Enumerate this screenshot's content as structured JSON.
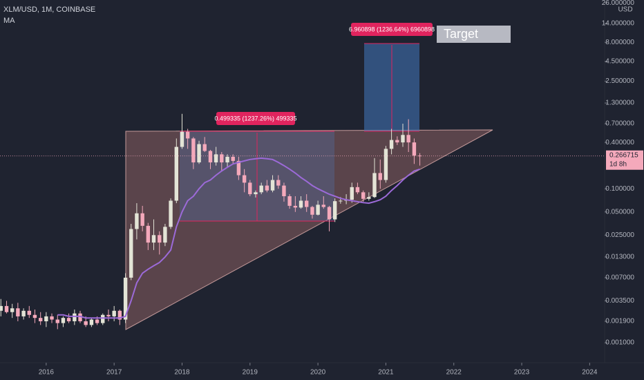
{
  "chart_data": {
    "type": "candlestick",
    "title": "XLM/USD, 1M, COINBASE",
    "currency": "USD",
    "log_scale": true,
    "up_color": "#e3e4d6",
    "down_color": "#f4a9bb",
    "xlim": [
      2015.32,
      2024.22
    ],
    "xticks": [
      2016,
      2017,
      2018,
      2019,
      2020,
      2021,
      2022,
      2023,
      2024
    ],
    "ylim": [
      0.00055,
      28.3
    ],
    "yticks": [
      {
        "value": 26,
        "label": "26.000000"
      },
      {
        "value": 14,
        "label": "14.000000"
      },
      {
        "value": 8,
        "label": "8.000000"
      },
      {
        "value": 4.5,
        "label": "4.500000"
      },
      {
        "value": 2.5,
        "label": "2.500000"
      },
      {
        "value": 1.3,
        "label": "1.300000"
      },
      {
        "value": 0.7,
        "label": "0.700000"
      },
      {
        "value": 0.4,
        "label": "0.400000"
      },
      {
        "value": 0.1,
        "label": "0.100000"
      },
      {
        "value": 0.05,
        "label": "0.050000"
      },
      {
        "value": 0.025,
        "label": "0.025000"
      },
      {
        "value": 0.013,
        "label": "0.013000"
      },
      {
        "value": 0.007,
        "label": "0.007000"
      },
      {
        "value": 0.0035,
        "label": "0.003500"
      },
      {
        "value": 0.0019,
        "label": "0.001900"
      },
      {
        "value": 0.001,
        "label": "0.001000"
      }
    ],
    "last_price": 0.266715,
    "countdown": "1d 8h",
    "x": [
      2015.333,
      2015.417,
      2015.5,
      2015.583,
      2015.667,
      2015.75,
      2015.833,
      2015.917,
      2016,
      2016.083,
      2016.167,
      2016.25,
      2016.333,
      2016.417,
      2016.5,
      2016.583,
      2016.667,
      2016.75,
      2016.833,
      2016.917,
      2017,
      2017.083,
      2017.167,
      2017.25,
      2017.333,
      2017.417,
      2017.5,
      2017.583,
      2017.667,
      2017.75,
      2017.833,
      2017.917,
      2018,
      2018.083,
      2018.167,
      2018.25,
      2018.333,
      2018.417,
      2018.5,
      2018.583,
      2018.667,
      2018.75,
      2018.833,
      2018.917,
      2019,
      2019.083,
      2019.167,
      2019.25,
      2019.333,
      2019.417,
      2019.5,
      2019.583,
      2019.667,
      2019.75,
      2019.833,
      2019.917,
      2020,
      2020.083,
      2020.167,
      2020.25,
      2020.333,
      2020.417,
      2020.5,
      2020.583,
      2020.667,
      2020.75,
      2020.833,
      2020.917,
      2021,
      2021.083,
      2021.167,
      2021.25,
      2021.333,
      2021.417,
      2021.5
    ],
    "candles": [
      [
        0.0026,
        0.0037,
        0.0022,
        0.003
      ],
      [
        0.003,
        0.0035,
        0.0024,
        0.0025
      ],
      [
        0.0025,
        0.0032,
        0.0021,
        0.0028
      ],
      [
        0.0028,
        0.0033,
        0.0019,
        0.0022
      ],
      [
        0.0022,
        0.0028,
        0.002,
        0.0026
      ],
      [
        0.0026,
        0.003,
        0.0021,
        0.0023
      ],
      [
        0.0023,
        0.0027,
        0.0018,
        0.0021
      ],
      [
        0.0021,
        0.0025,
        0.0017,
        0.0019
      ],
      [
        0.0019,
        0.0025,
        0.0016,
        0.0022
      ],
      [
        0.0022,
        0.0024,
        0.0018,
        0.002
      ],
      [
        0.002,
        0.0023,
        0.0015,
        0.0018
      ],
      [
        0.0018,
        0.0022,
        0.0016,
        0.0021
      ],
      [
        0.0021,
        0.0024,
        0.0018,
        0.0019
      ],
      [
        0.0019,
        0.0027,
        0.0017,
        0.0024
      ],
      [
        0.0024,
        0.0026,
        0.0018,
        0.0019
      ],
      [
        0.0019,
        0.0022,
        0.0016,
        0.0017
      ],
      [
        0.0017,
        0.0021,
        0.0016,
        0.002
      ],
      [
        0.002,
        0.0022,
        0.0017,
        0.0018
      ],
      [
        0.0018,
        0.0024,
        0.0017,
        0.0023
      ],
      [
        0.0023,
        0.0027,
        0.0019,
        0.0022
      ],
      [
        0.0022,
        0.003,
        0.0019,
        0.0026
      ],
      [
        0.0026,
        0.0027,
        0.0017,
        0.002
      ],
      [
        0.002,
        0.008,
        0.0018,
        0.007
      ],
      [
        0.007,
        0.035,
        0.0065,
        0.03
      ],
      [
        0.03,
        0.065,
        0.022,
        0.048
      ],
      [
        0.048,
        0.06,
        0.028,
        0.033
      ],
      [
        0.033,
        0.036,
        0.016,
        0.02
      ],
      [
        0.02,
        0.04,
        0.016,
        0.025
      ],
      [
        0.025,
        0.028,
        0.014,
        0.02
      ],
      [
        0.02,
        0.035,
        0.018,
        0.032
      ],
      [
        0.032,
        0.075,
        0.03,
        0.07
      ],
      [
        0.07,
        0.45,
        0.065,
        0.35
      ],
      [
        0.35,
        0.94,
        0.33,
        0.55
      ],
      [
        0.55,
        0.6,
        0.33,
        0.45
      ],
      [
        0.45,
        0.47,
        0.18,
        0.22
      ],
      [
        0.22,
        0.42,
        0.21,
        0.38
      ],
      [
        0.38,
        0.47,
        0.3,
        0.31
      ],
      [
        0.31,
        0.32,
        0.18,
        0.22
      ],
      [
        0.22,
        0.35,
        0.2,
        0.28
      ],
      [
        0.28,
        0.3,
        0.17,
        0.22
      ],
      [
        0.22,
        0.28,
        0.19,
        0.26
      ],
      [
        0.26,
        0.28,
        0.21,
        0.23
      ],
      [
        0.23,
        0.26,
        0.13,
        0.15
      ],
      [
        0.15,
        0.18,
        0.09,
        0.12
      ],
      [
        0.12,
        0.13,
        0.08,
        0.085
      ],
      [
        0.085,
        0.095,
        0.077,
        0.09
      ],
      [
        0.09,
        0.12,
        0.085,
        0.11
      ],
      [
        0.11,
        0.13,
        0.09,
        0.095
      ],
      [
        0.095,
        0.15,
        0.09,
        0.13
      ],
      [
        0.13,
        0.15,
        0.1,
        0.11
      ],
      [
        0.11,
        0.12,
        0.068,
        0.08
      ],
      [
        0.08,
        0.085,
        0.055,
        0.06
      ],
      [
        0.06,
        0.08,
        0.05,
        0.057
      ],
      [
        0.057,
        0.08,
        0.055,
        0.07
      ],
      [
        0.07,
        0.085,
        0.05,
        0.058
      ],
      [
        0.058,
        0.06,
        0.041,
        0.046
      ],
      [
        0.046,
        0.07,
        0.045,
        0.062
      ],
      [
        0.062,
        0.08,
        0.055,
        0.058
      ],
      [
        0.058,
        0.06,
        0.028,
        0.04
      ],
      [
        0.04,
        0.075,
        0.037,
        0.069
      ],
      [
        0.069,
        0.078,
        0.064,
        0.07
      ],
      [
        0.07,
        0.085,
        0.063,
        0.072
      ],
      [
        0.072,
        0.12,
        0.066,
        0.105
      ],
      [
        0.105,
        0.12,
        0.085,
        0.09
      ],
      [
        0.09,
        0.095,
        0.068,
        0.074
      ],
      [
        0.074,
        0.09,
        0.07,
        0.078
      ],
      [
        0.078,
        0.25,
        0.076,
        0.16
      ],
      [
        0.16,
        0.24,
        0.1,
        0.13
      ],
      [
        0.13,
        0.36,
        0.12,
        0.33
      ],
      [
        0.33,
        0.6,
        0.28,
        0.43
      ],
      [
        0.43,
        0.48,
        0.37,
        0.4
      ],
      [
        0.4,
        0.7,
        0.35,
        0.5
      ],
      [
        0.5,
        0.8,
        0.3,
        0.4
      ],
      [
        0.4,
        0.45,
        0.21,
        0.27
      ],
      [
        0.27,
        0.29,
        0.2,
        0.266715
      ]
    ],
    "series": [
      {
        "name": "MA",
        "color": "#9c6ad8",
        "values": [
          null,
          null,
          null,
          null,
          null,
          null,
          null,
          null,
          null,
          null,
          0.0023,
          0.0023,
          0.0022,
          0.0022,
          0.0022,
          0.0021,
          0.0021,
          0.0021,
          0.0021,
          0.0021,
          0.0021,
          0.0021,
          0.0022,
          0.0035,
          0.006,
          0.008,
          0.009,
          0.01,
          0.011,
          0.013,
          0.016,
          0.032,
          0.05,
          0.07,
          0.08,
          0.1,
          0.12,
          0.13,
          0.15,
          0.17,
          0.19,
          0.21,
          0.22,
          0.23,
          0.24,
          0.245,
          0.25,
          0.245,
          0.24,
          0.22,
          0.2,
          0.18,
          0.16,
          0.14,
          0.125,
          0.11,
          0.1,
          0.092,
          0.085,
          0.08,
          0.075,
          0.072,
          0.07,
          0.068,
          0.066,
          0.065,
          0.068,
          0.072,
          0.08,
          0.095,
          0.11,
          0.13,
          0.15,
          0.17,
          0.18
        ]
      }
    ],
    "annotations": {
      "measure_1": "0.499335 (1237.26%) 499335",
      "measure_2": "6.960898 (1236.64%) 6960898",
      "target": "Target"
    }
  }
}
